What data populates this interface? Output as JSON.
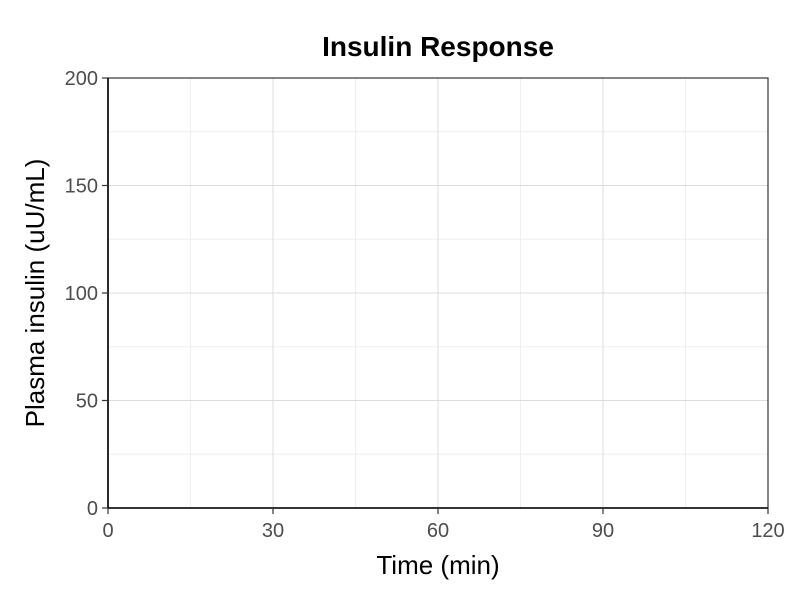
{
  "chart_data": {
    "type": "line",
    "title": "Insulin Response",
    "xlabel": "Time (min)",
    "ylabel": "Plasma insulin (uU/mL)",
    "xlim": [
      0,
      120
    ],
    "ylim": [
      0,
      200
    ],
    "x_ticks": [
      0,
      30,
      60,
      90,
      120
    ],
    "y_ticks": [
      0,
      50,
      100,
      150,
      200
    ],
    "x_minor": [
      15,
      45,
      75,
      105
    ],
    "y_minor": [
      25,
      75,
      125,
      175
    ],
    "grid": true,
    "series": []
  }
}
